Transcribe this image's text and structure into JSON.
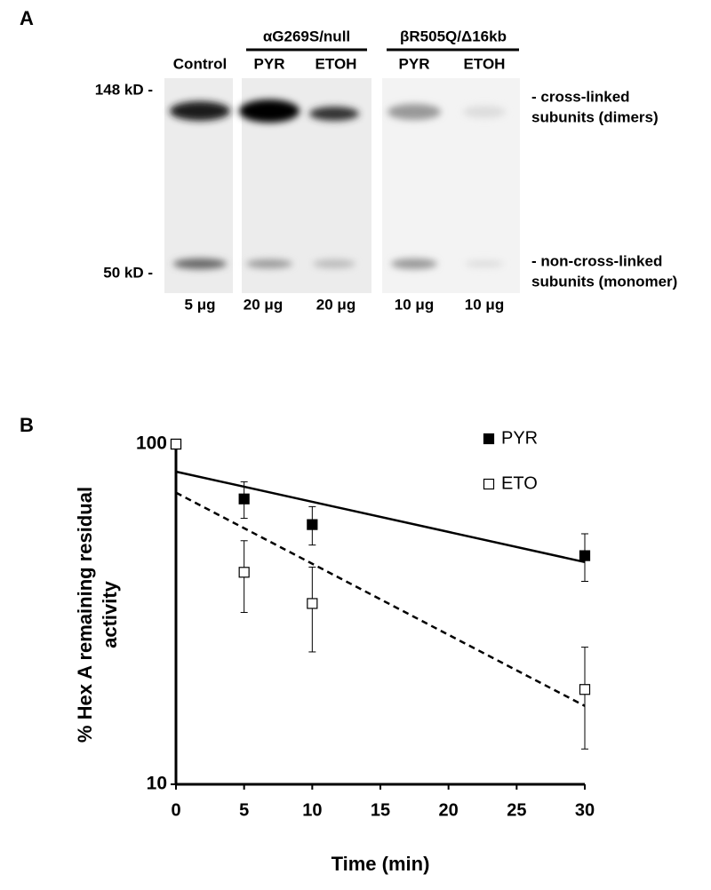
{
  "panel_a": {
    "label": "A",
    "group_headers": [
      "αG269S/null",
      "βR505Q/Δ16kb"
    ],
    "lane_labels": [
      "Control",
      "PYR",
      "ETOH",
      "PYR",
      "ETOH"
    ],
    "marker_labels": [
      "148 kD -",
      "50 kD -"
    ],
    "band_labels": [
      [
        "- cross-linked",
        "subunits (dimers)"
      ],
      [
        "- non-cross-linked",
        "subunits (monomer)"
      ]
    ],
    "amounts": [
      "5 μg",
      "20 μg",
      "20 μg",
      "10 μg",
      "10 μg"
    ]
  },
  "chart_data": {
    "type": "scatter",
    "panel_label": "B",
    "xlabel": "Time (min)",
    "ylabel": [
      "% Hex A remaining residual",
      "activity"
    ],
    "xlim": [
      0,
      30
    ],
    "xticks": [
      0,
      5,
      10,
      15,
      20,
      25,
      30
    ],
    "ylim": [
      10,
      100
    ],
    "yticks": [
      10,
      100
    ],
    "log_y": true,
    "legend": "upper right",
    "series": [
      {
        "name": "PYR",
        "color": "#000000",
        "filled": true,
        "x": [
          0,
          5,
          10,
          30
        ],
        "values": [
          100,
          69,
          58,
          47
        ],
        "errors": [
          null,
          8.5,
          7.5,
          7.5
        ],
        "trendline": {
          "style": "solid",
          "x": [
            0,
            30
          ],
          "values": [
            83,
            45
          ]
        }
      },
      {
        "name": "ETO",
        "color": "#000000",
        "filled": false,
        "x": [
          0,
          5,
          10,
          30
        ],
        "values": [
          100,
          42,
          34,
          19
        ],
        "errors": [
          null,
          10,
          9.5,
          6.3
        ],
        "trendline": {
          "style": "dashed",
          "x": [
            0,
            30
          ],
          "values": [
            72,
            17
          ]
        }
      }
    ]
  }
}
